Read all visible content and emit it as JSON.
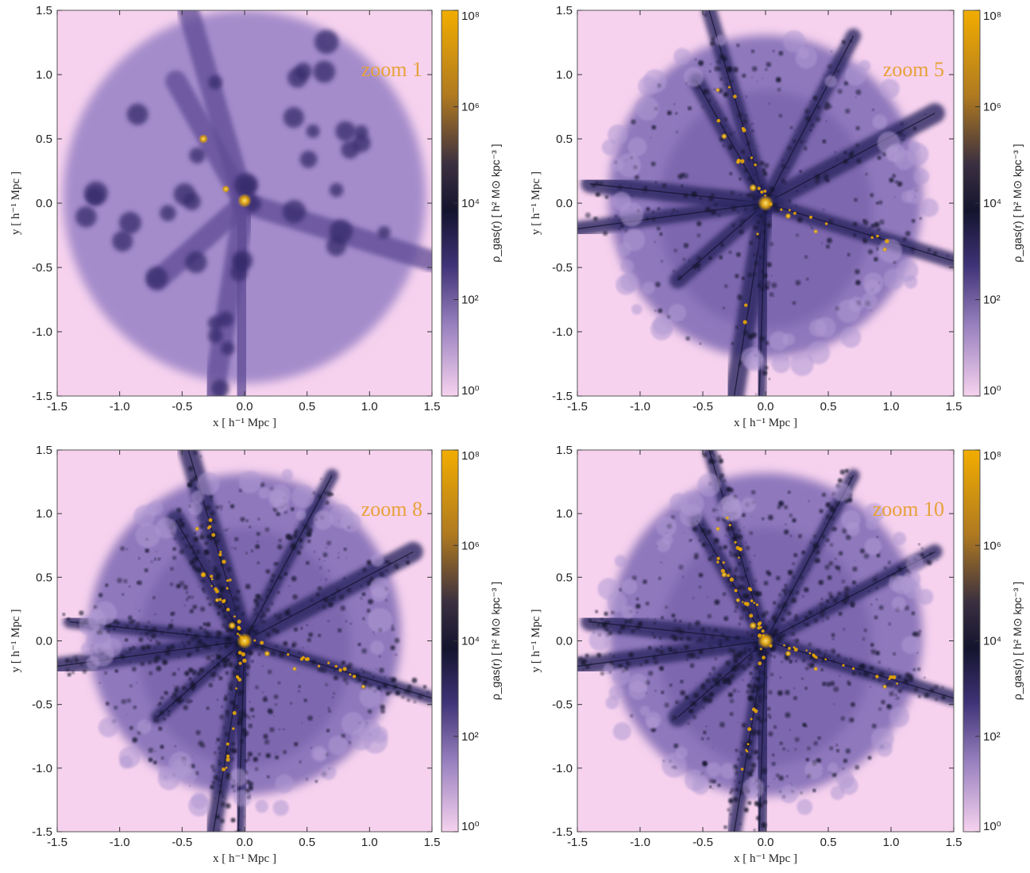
{
  "colors": {
    "bg_light": "#f6d2ee",
    "mid_purple": "#a087c4",
    "dark_purple": "#3a2e6a",
    "navy": "#14142e",
    "gold": "#f2ad00",
    "label": "#e8a13a"
  },
  "colorbar": {
    "label": "ρ_gas(r) [ h² M⊙ kpc⁻³ ]",
    "scale": "log",
    "range": [
      1,
      100000000
    ],
    "tick_labels": [
      "10⁸",
      "10⁶",
      "10⁴",
      "10²",
      "10⁰"
    ]
  },
  "chart_data": [
    {
      "type": "heatmap",
      "panel_label": "zoom 1",
      "xlabel": "x [ h⁻¹ Mpc ]",
      "ylabel": "y [ h⁻¹ Mpc ]",
      "xlim": [
        -1.5,
        1.5
      ],
      "ylim": [
        -1.5,
        1.5
      ],
      "xticks": [
        "-1.5",
        "-1.0",
        "-0.5",
        "0.0",
        "0.5",
        "1.0",
        "1.5"
      ],
      "yticks": [
        "1.5",
        "1.0",
        "0.5",
        "0.0",
        "-0.5",
        "-1.0",
        "-1.5"
      ],
      "detail": 0
    },
    {
      "type": "heatmap",
      "panel_label": "zoom 5",
      "xlabel": "x [ h⁻¹ Mpc ]",
      "ylabel": "y [ h⁻¹ Mpc ]",
      "xlim": [
        -1.5,
        1.5
      ],
      "ylim": [
        -1.5,
        1.5
      ],
      "xticks": [
        "-1.5",
        "-1.0",
        "-0.5",
        "0.0",
        "0.5",
        "1.0",
        "1.5"
      ],
      "yticks": [
        "1.5",
        "1.0",
        "0.5",
        "0.0",
        "-0.5",
        "-1.0",
        "-1.5"
      ],
      "detail": 1
    },
    {
      "type": "heatmap",
      "panel_label": "zoom 8",
      "xlabel": "x [ h⁻¹ Mpc ]",
      "ylabel": "y [ h⁻¹ Mpc ]",
      "xlim": [
        -1.5,
        1.5
      ],
      "ylim": [
        -1.5,
        1.5
      ],
      "xticks": [
        "-1.5",
        "-1.0",
        "-0.5",
        "0.0",
        "0.5",
        "1.0",
        "1.5"
      ],
      "yticks": [
        "1.5",
        "1.0",
        "0.5",
        "0.0",
        "-0.5",
        "-1.0",
        "-1.5"
      ],
      "detail": 2
    },
    {
      "type": "heatmap",
      "panel_label": "zoom 10",
      "xlabel": "x [ h⁻¹ Mpc ]",
      "ylabel": "y [ h⁻¹ Mpc ]",
      "xlim": [
        -1.5,
        1.5
      ],
      "ylim": [
        -1.5,
        1.5
      ],
      "xticks": [
        "-1.5",
        "-1.0",
        "-0.5",
        "0.0",
        "0.5",
        "1.0",
        "1.5"
      ],
      "yticks": [
        "1.5",
        "1.0",
        "0.5",
        "0.0",
        "-0.5",
        "-1.0",
        "-1.5"
      ],
      "detail": 2
    }
  ]
}
